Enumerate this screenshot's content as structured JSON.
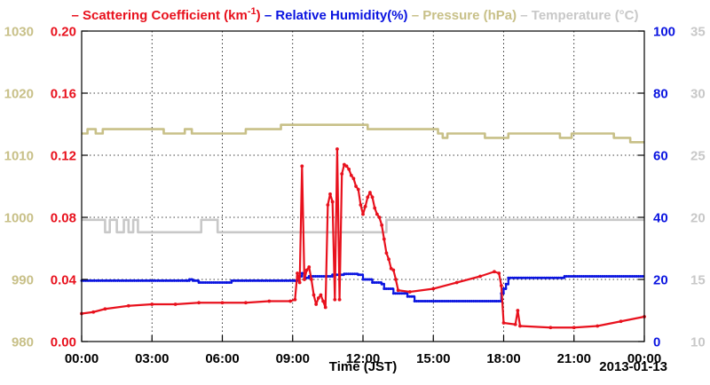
{
  "chart_data": {
    "type": "line",
    "legend": {
      "placement": "top",
      "items": [
        {
          "prefix": "– ",
          "text": "Scattering Coefficient (km",
          "sup": "-1",
          "suffix": ")",
          "color": "#e8111d"
        },
        {
          "prefix": "– ",
          "text": "Relative Humidity(%)",
          "color": "#0a14e0"
        },
        {
          "prefix": "– ",
          "text": "Pressure (hPa)",
          "color": "#c8c088"
        },
        {
          "prefix": "– ",
          "text": "Temperature (°C)",
          "color": "#c8c8c8"
        }
      ]
    },
    "xlabel": "Time (JST)",
    "date_label": "2013-01-13",
    "x_unit": "hours (JST)",
    "xlim": [
      0,
      24
    ],
    "x_ticks": [
      {
        "v": 0,
        "label": "00:00"
      },
      {
        "v": 3,
        "label": "03:00"
      },
      {
        "v": 6,
        "label": "06:00"
      },
      {
        "v": 9,
        "label": "09:00"
      },
      {
        "v": 12,
        "label": "12:00"
      },
      {
        "v": 15,
        "label": "15:00"
      },
      {
        "v": 18,
        "label": "18:00"
      },
      {
        "v": 21,
        "label": "21:00"
      },
      {
        "v": 24,
        "label": "00:00"
      }
    ],
    "axes": {
      "pressure": {
        "side": "left-outer",
        "min": 980,
        "max": 1030,
        "color": "#c8c088",
        "ticks": [
          "980",
          "990",
          "1000",
          "1010",
          "1020",
          "1030"
        ]
      },
      "scattering": {
        "side": "left-inner",
        "min": 0,
        "max": 0.2,
        "color": "#e8111d",
        "ticks": [
          "0.00",
          "0.04",
          "0.08",
          "0.12",
          "0.16",
          "0.20"
        ]
      },
      "humidity": {
        "side": "right-inner",
        "min": 0,
        "max": 100,
        "color": "#0a14e0",
        "ticks": [
          "0",
          "20",
          "40",
          "60",
          "80",
          "100"
        ]
      },
      "temperature": {
        "side": "right-outer",
        "min": 10,
        "max": 35,
        "color": "#c8c8c8",
        "ticks": [
          "10",
          "15",
          "20",
          "25",
          "30",
          "35"
        ]
      }
    },
    "grid": true,
    "series": [
      {
        "name": "Pressure (hPa)",
        "axis": "pressure",
        "color": "#c8c088",
        "step": true,
        "points": [
          [
            0,
            1013.5
          ],
          [
            0.25,
            1014.2
          ],
          [
            0.6,
            1013.5
          ],
          [
            0.9,
            1014.2
          ],
          [
            3.5,
            1013.5
          ],
          [
            4.4,
            1014.2
          ],
          [
            4.7,
            1013.5
          ],
          [
            7.0,
            1014.2
          ],
          [
            8.5,
            1014.9
          ],
          [
            12.2,
            1014.2
          ],
          [
            15.2,
            1013.5
          ],
          [
            15.4,
            1012.8
          ],
          [
            15.6,
            1013.5
          ],
          [
            17.2,
            1012.8
          ],
          [
            18.2,
            1013.5
          ],
          [
            20.4,
            1012.8
          ],
          [
            20.9,
            1013.5
          ],
          [
            22.7,
            1012.8
          ],
          [
            23.0,
            1012.8
          ],
          [
            23.4,
            1012.1
          ],
          [
            24,
            1012.1
          ]
        ]
      },
      {
        "name": "Temperature (°C)",
        "axis": "temperature",
        "color": "#c8c8c8",
        "step": true,
        "points": [
          [
            0,
            19.8
          ],
          [
            0.8,
            19.8
          ],
          [
            1.0,
            18.8
          ],
          [
            1.2,
            19.8
          ],
          [
            1.5,
            18.8
          ],
          [
            1.8,
            19.8
          ],
          [
            2.0,
            18.8
          ],
          [
            2.2,
            19.8
          ],
          [
            2.4,
            18.8
          ],
          [
            5.0,
            18.8
          ],
          [
            5.1,
            19.8
          ],
          [
            5.7,
            19.8
          ],
          [
            5.8,
            18.8
          ],
          [
            12.9,
            18.8
          ],
          [
            13.0,
            19.8
          ],
          [
            24,
            19.8
          ]
        ]
      },
      {
        "name": "Relative Humidity(%)",
        "axis": "humidity",
        "color": "#0a14e0",
        "step": true,
        "points": [
          [
            0,
            19.6
          ],
          [
            3.5,
            19.6
          ],
          [
            4.5,
            19.6
          ],
          [
            4.6,
            20.0
          ],
          [
            4.75,
            19.6
          ],
          [
            5.0,
            19.0
          ],
          [
            6.2,
            19.0
          ],
          [
            6.4,
            19.6
          ],
          [
            9.1,
            19.6
          ],
          [
            9.2,
            21.0
          ],
          [
            9.4,
            22.0
          ],
          [
            9.5,
            20.5
          ],
          [
            9.7,
            21.0
          ],
          [
            10.7,
            21.5
          ],
          [
            11.2,
            21.8
          ],
          [
            11.8,
            21.5
          ],
          [
            12.0,
            20.0
          ],
          [
            12.4,
            19.0
          ],
          [
            12.8,
            18.5
          ],
          [
            12.9,
            17.0
          ],
          [
            13.3,
            15.5
          ],
          [
            13.9,
            14.5
          ],
          [
            14.2,
            13.0
          ],
          [
            17.7,
            13.0
          ],
          [
            17.9,
            15.5
          ],
          [
            18.0,
            17.0
          ],
          [
            18.1,
            18.5
          ],
          [
            18.2,
            20.5
          ],
          [
            19.9,
            20.5
          ],
          [
            20.6,
            21.0
          ],
          [
            24,
            21.0
          ]
        ]
      },
      {
        "name": "Scattering Coefficient (km-1)",
        "axis": "scattering",
        "color": "#e8111d",
        "markers": true,
        "points": [
          [
            0,
            0.018
          ],
          [
            0.5,
            0.019
          ],
          [
            1.0,
            0.021
          ],
          [
            2.0,
            0.023
          ],
          [
            3.0,
            0.024
          ],
          [
            4.0,
            0.024
          ],
          [
            5.0,
            0.025
          ],
          [
            6.0,
            0.025
          ],
          [
            7.0,
            0.025
          ],
          [
            8.0,
            0.026
          ],
          [
            8.9,
            0.026
          ],
          [
            9.1,
            0.027
          ],
          [
            9.2,
            0.044
          ],
          [
            9.3,
            0.038
          ],
          [
            9.4,
            0.113
          ],
          [
            9.5,
            0.04
          ],
          [
            9.6,
            0.046
          ],
          [
            9.7,
            0.048
          ],
          [
            9.8,
            0.04
          ],
          [
            9.9,
            0.03
          ],
          [
            10.0,
            0.024
          ],
          [
            10.1,
            0.028
          ],
          [
            10.2,
            0.03
          ],
          [
            10.3,
            0.026
          ],
          [
            10.4,
            0.022
          ],
          [
            10.5,
            0.088
          ],
          [
            10.6,
            0.095
          ],
          [
            10.7,
            0.09
          ],
          [
            10.8,
            0.027
          ],
          [
            10.9,
            0.124
          ],
          [
            11.0,
            0.027
          ],
          [
            11.1,
            0.108
          ],
          [
            11.2,
            0.114
          ],
          [
            11.3,
            0.113
          ],
          [
            11.4,
            0.111
          ],
          [
            11.5,
            0.107
          ],
          [
            11.6,
            0.105
          ],
          [
            11.7,
            0.1
          ],
          [
            11.8,
            0.098
          ],
          [
            11.9,
            0.088
          ],
          [
            12.0,
            0.082
          ],
          [
            12.1,
            0.087
          ],
          [
            12.2,
            0.093
          ],
          [
            12.3,
            0.096
          ],
          [
            12.4,
            0.093
          ],
          [
            12.5,
            0.086
          ],
          [
            12.6,
            0.082
          ],
          [
            12.7,
            0.08
          ],
          [
            12.8,
            0.075
          ],
          [
            12.9,
            0.066
          ],
          [
            13.0,
            0.057
          ],
          [
            13.1,
            0.053
          ],
          [
            13.2,
            0.047
          ],
          [
            13.3,
            0.046
          ],
          [
            13.4,
            0.04
          ],
          [
            13.5,
            0.033
          ],
          [
            14.0,
            0.032
          ],
          [
            15.0,
            0.034
          ],
          [
            16.0,
            0.038
          ],
          [
            17.0,
            0.042
          ],
          [
            17.6,
            0.045
          ],
          [
            17.8,
            0.044
          ],
          [
            17.9,
            0.036
          ],
          [
            18.0,
            0.012
          ],
          [
            18.5,
            0.011
          ],
          [
            18.6,
            0.02
          ],
          [
            18.7,
            0.01
          ],
          [
            20.0,
            0.009
          ],
          [
            21.0,
            0.009
          ],
          [
            22.0,
            0.01
          ],
          [
            23.0,
            0.013
          ],
          [
            24,
            0.016
          ]
        ]
      }
    ]
  }
}
